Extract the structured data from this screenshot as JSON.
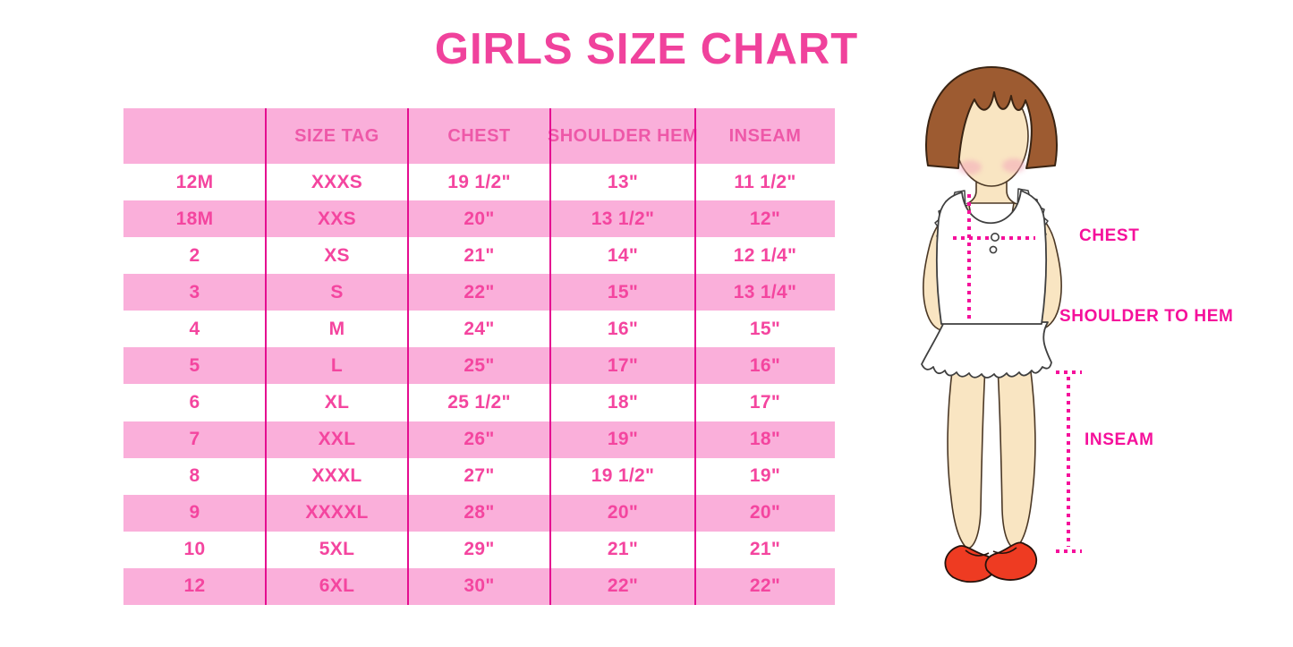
{
  "title": "GIRLS SIZE CHART",
  "table": {
    "headers": [
      "",
      "SIZE TAG",
      "CHEST",
      "SHOULDER HEM",
      "INSEAM"
    ],
    "rows": [
      [
        "12M",
        "XXXS",
        "19 1/2\"",
        "13\"",
        "11 1/2\""
      ],
      [
        "18M",
        "XXS",
        "20\"",
        "13 1/2\"",
        "12\""
      ],
      [
        "2",
        "XS",
        "21\"",
        "14\"",
        "12 1/4\""
      ],
      [
        "3",
        "S",
        "22\"",
        "15\"",
        "13 1/4\""
      ],
      [
        "4",
        "M",
        "24\"",
        "16\"",
        "15\""
      ],
      [
        "5",
        "L",
        "25\"",
        "17\"",
        "16\""
      ],
      [
        "6",
        "XL",
        "25 1/2\"",
        "18\"",
        "17\""
      ],
      [
        "7",
        "XXL",
        "26\"",
        "19\"",
        "18\""
      ],
      [
        "8",
        "XXXL",
        "27\"",
        "19 1/2\"",
        "19\""
      ],
      [
        "9",
        "XXXXL",
        "28\"",
        "20\"",
        "20\""
      ],
      [
        "10",
        "5XL",
        "29\"",
        "21\"",
        "21\""
      ],
      [
        "12",
        "6XL",
        "30\"",
        "22\"",
        "22\""
      ]
    ]
  },
  "diagram": {
    "chest_label": "CHEST",
    "shoulder_to_hem_label": "SHOULDER TO HEM",
    "inseam_label": "INSEAM"
  },
  "colors": {
    "title_pink": "#F0429C",
    "row_band_pink": "#FAAFDA",
    "grid_line_magenta": "#E50D90",
    "table_text_pink": "#F4459F",
    "header_text_pink": "#EE58A8",
    "measure_line_pink": "#F5109B",
    "hair_brown": "#9D5B31",
    "skin": "#F9E5C2",
    "shoe_red": "#EE3B22"
  }
}
